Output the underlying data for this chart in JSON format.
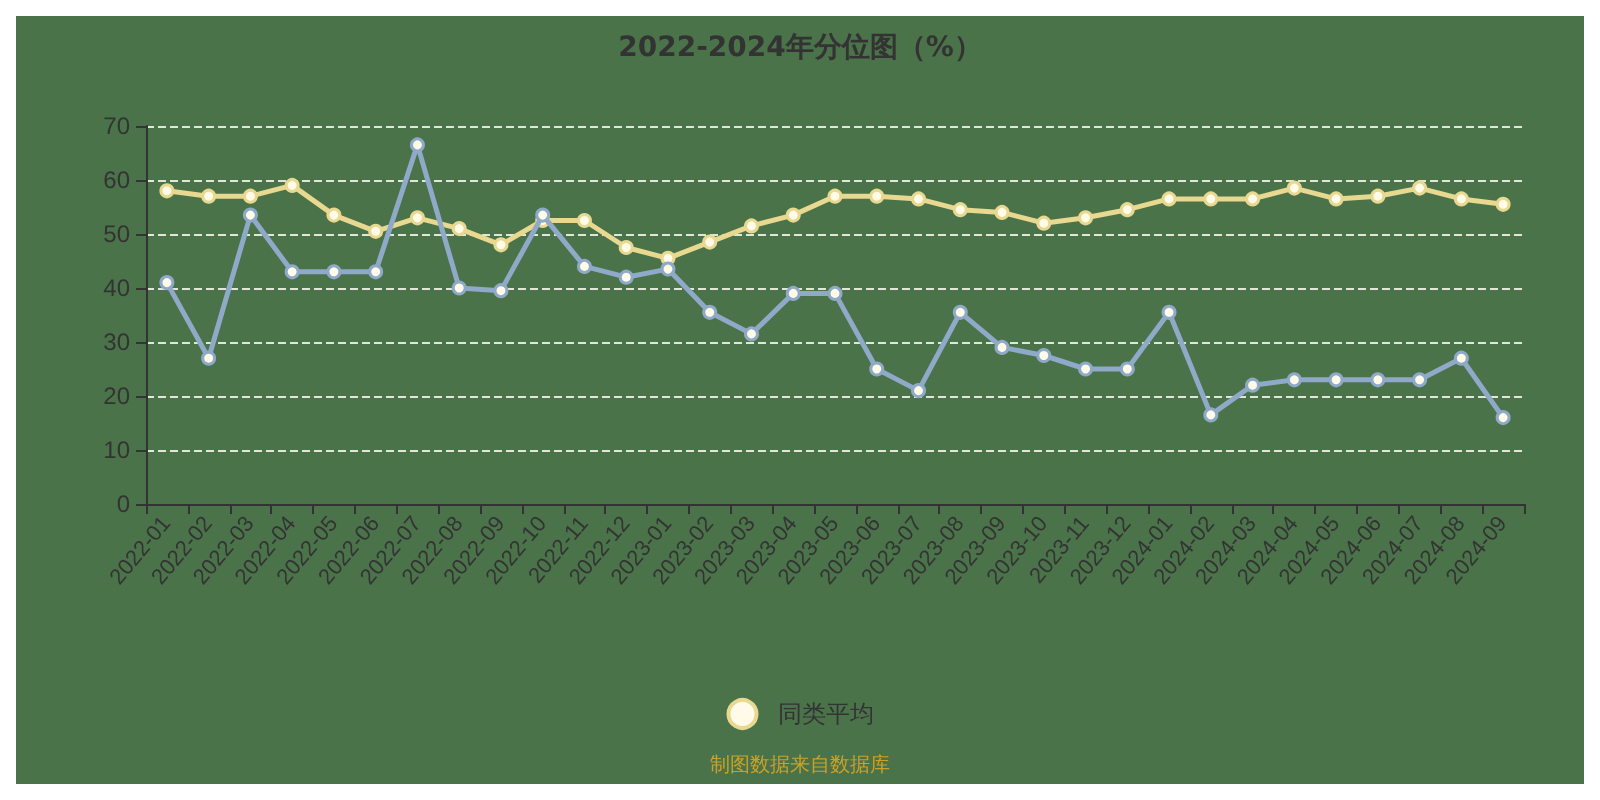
{
  "chart_data": {
    "type": "line",
    "title": "2022-2024年分位图（%）",
    "categories": [
      "2022-01",
      "2022-02",
      "2022-03",
      "2022-04",
      "2022-05",
      "2022-06",
      "2022-07",
      "2022-08",
      "2022-09",
      "2022-10",
      "2022-11",
      "2022-12",
      "2023-01",
      "2023-02",
      "2023-03",
      "2023-04",
      "2023-05",
      "2023-06",
      "2023-07",
      "2023-08",
      "2023-09",
      "2023-10",
      "2023-11",
      "2023-12",
      "2024-01",
      "2024-02",
      "2024-03",
      "2024-04",
      "2024-05",
      "2024-06",
      "2024-07",
      "2024-08",
      "2024-09"
    ],
    "series": [
      {
        "color": "#8fa9c9",
        "values": [
          41,
          27,
          53.5,
          43,
          43,
          43,
          66.5,
          40,
          39.5,
          53.5,
          44,
          42,
          43.5,
          35.5,
          31.5,
          39,
          39,
          25,
          21,
          35.5,
          29,
          27.5,
          25,
          25,
          35.5,
          16.5,
          22,
          23,
          23,
          23,
          23,
          27,
          16
        ]
      },
      {
        "name": "同类平均",
        "color": "#e8d890",
        "values": [
          58,
          57,
          57,
          59,
          53.5,
          50.5,
          53,
          51,
          48,
          52.5,
          52.5,
          47.5,
          45.5,
          48.5,
          51.5,
          53.5,
          57,
          57,
          56.5,
          54.5,
          54,
          52,
          53,
          54.5,
          56.5,
          56.5,
          56.5,
          58.5,
          56.5,
          57,
          58.5,
          56.5,
          55.5
        ]
      }
    ],
    "ylim": [
      0,
      70
    ],
    "yticks": [
      0,
      10,
      20,
      30,
      40,
      50,
      60,
      70
    ],
    "grid": "y",
    "legend": "bottom",
    "marker": "circle",
    "line_style": "solid",
    "annotations": [
      "制图数据来自数据库"
    ]
  }
}
